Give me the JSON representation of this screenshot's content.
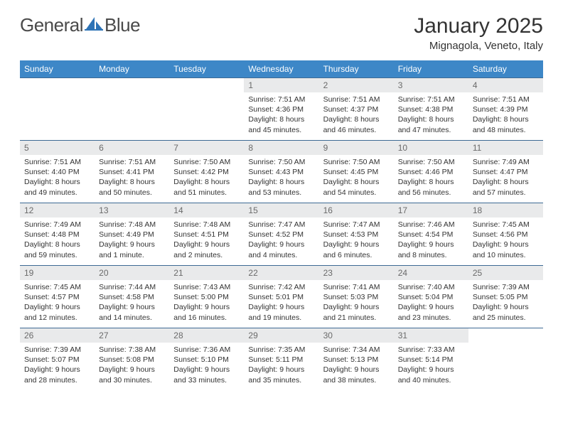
{
  "brand": {
    "part1": "General",
    "part2": "Blue"
  },
  "colors": {
    "header_bg": "#3d87c7",
    "header_fg": "#ffffff",
    "cell_border": "#3d6a94",
    "daynum_bg": "#e9eaeb",
    "daynum_fg": "#6a6a6a",
    "text": "#333333",
    "logo_gray": "#4a4a4a",
    "logo_blue": "#2d73b6"
  },
  "title": "January 2025",
  "location": "Mignagola, Veneto, Italy",
  "weekdays": [
    "Sunday",
    "Monday",
    "Tuesday",
    "Wednesday",
    "Thursday",
    "Friday",
    "Saturday"
  ],
  "blanks_before": 3,
  "days": [
    {
      "n": "1",
      "sunrise": "7:51 AM",
      "sunset": "4:36 PM",
      "daylight": "8 hours and 45 minutes."
    },
    {
      "n": "2",
      "sunrise": "7:51 AM",
      "sunset": "4:37 PM",
      "daylight": "8 hours and 46 minutes."
    },
    {
      "n": "3",
      "sunrise": "7:51 AM",
      "sunset": "4:38 PM",
      "daylight": "8 hours and 47 minutes."
    },
    {
      "n": "4",
      "sunrise": "7:51 AM",
      "sunset": "4:39 PM",
      "daylight": "8 hours and 48 minutes."
    },
    {
      "n": "5",
      "sunrise": "7:51 AM",
      "sunset": "4:40 PM",
      "daylight": "8 hours and 49 minutes."
    },
    {
      "n": "6",
      "sunrise": "7:51 AM",
      "sunset": "4:41 PM",
      "daylight": "8 hours and 50 minutes."
    },
    {
      "n": "7",
      "sunrise": "7:50 AM",
      "sunset": "4:42 PM",
      "daylight": "8 hours and 51 minutes."
    },
    {
      "n": "8",
      "sunrise": "7:50 AM",
      "sunset": "4:43 PM",
      "daylight": "8 hours and 53 minutes."
    },
    {
      "n": "9",
      "sunrise": "7:50 AM",
      "sunset": "4:45 PM",
      "daylight": "8 hours and 54 minutes."
    },
    {
      "n": "10",
      "sunrise": "7:50 AM",
      "sunset": "4:46 PM",
      "daylight": "8 hours and 56 minutes."
    },
    {
      "n": "11",
      "sunrise": "7:49 AM",
      "sunset": "4:47 PM",
      "daylight": "8 hours and 57 minutes."
    },
    {
      "n": "12",
      "sunrise": "7:49 AM",
      "sunset": "4:48 PM",
      "daylight": "8 hours and 59 minutes."
    },
    {
      "n": "13",
      "sunrise": "7:48 AM",
      "sunset": "4:49 PM",
      "daylight": "9 hours and 1 minute."
    },
    {
      "n": "14",
      "sunrise": "7:48 AM",
      "sunset": "4:51 PM",
      "daylight": "9 hours and 2 minutes."
    },
    {
      "n": "15",
      "sunrise": "7:47 AM",
      "sunset": "4:52 PM",
      "daylight": "9 hours and 4 minutes."
    },
    {
      "n": "16",
      "sunrise": "7:47 AM",
      "sunset": "4:53 PM",
      "daylight": "9 hours and 6 minutes."
    },
    {
      "n": "17",
      "sunrise": "7:46 AM",
      "sunset": "4:54 PM",
      "daylight": "9 hours and 8 minutes."
    },
    {
      "n": "18",
      "sunrise": "7:45 AM",
      "sunset": "4:56 PM",
      "daylight": "9 hours and 10 minutes."
    },
    {
      "n": "19",
      "sunrise": "7:45 AM",
      "sunset": "4:57 PM",
      "daylight": "9 hours and 12 minutes."
    },
    {
      "n": "20",
      "sunrise": "7:44 AM",
      "sunset": "4:58 PM",
      "daylight": "9 hours and 14 minutes."
    },
    {
      "n": "21",
      "sunrise": "7:43 AM",
      "sunset": "5:00 PM",
      "daylight": "9 hours and 16 minutes."
    },
    {
      "n": "22",
      "sunrise": "7:42 AM",
      "sunset": "5:01 PM",
      "daylight": "9 hours and 19 minutes."
    },
    {
      "n": "23",
      "sunrise": "7:41 AM",
      "sunset": "5:03 PM",
      "daylight": "9 hours and 21 minutes."
    },
    {
      "n": "24",
      "sunrise": "7:40 AM",
      "sunset": "5:04 PM",
      "daylight": "9 hours and 23 minutes."
    },
    {
      "n": "25",
      "sunrise": "7:39 AM",
      "sunset": "5:05 PM",
      "daylight": "9 hours and 25 minutes."
    },
    {
      "n": "26",
      "sunrise": "7:39 AM",
      "sunset": "5:07 PM",
      "daylight": "9 hours and 28 minutes."
    },
    {
      "n": "27",
      "sunrise": "7:38 AM",
      "sunset": "5:08 PM",
      "daylight": "9 hours and 30 minutes."
    },
    {
      "n": "28",
      "sunrise": "7:36 AM",
      "sunset": "5:10 PM",
      "daylight": "9 hours and 33 minutes."
    },
    {
      "n": "29",
      "sunrise": "7:35 AM",
      "sunset": "5:11 PM",
      "daylight": "9 hours and 35 minutes."
    },
    {
      "n": "30",
      "sunrise": "7:34 AM",
      "sunset": "5:13 PM",
      "daylight": "9 hours and 38 minutes."
    },
    {
      "n": "31",
      "sunrise": "7:33 AM",
      "sunset": "5:14 PM",
      "daylight": "9 hours and 40 minutes."
    }
  ],
  "labels": {
    "sunrise": "Sunrise: ",
    "sunset": "Sunset: ",
    "daylight": "Daylight: "
  }
}
